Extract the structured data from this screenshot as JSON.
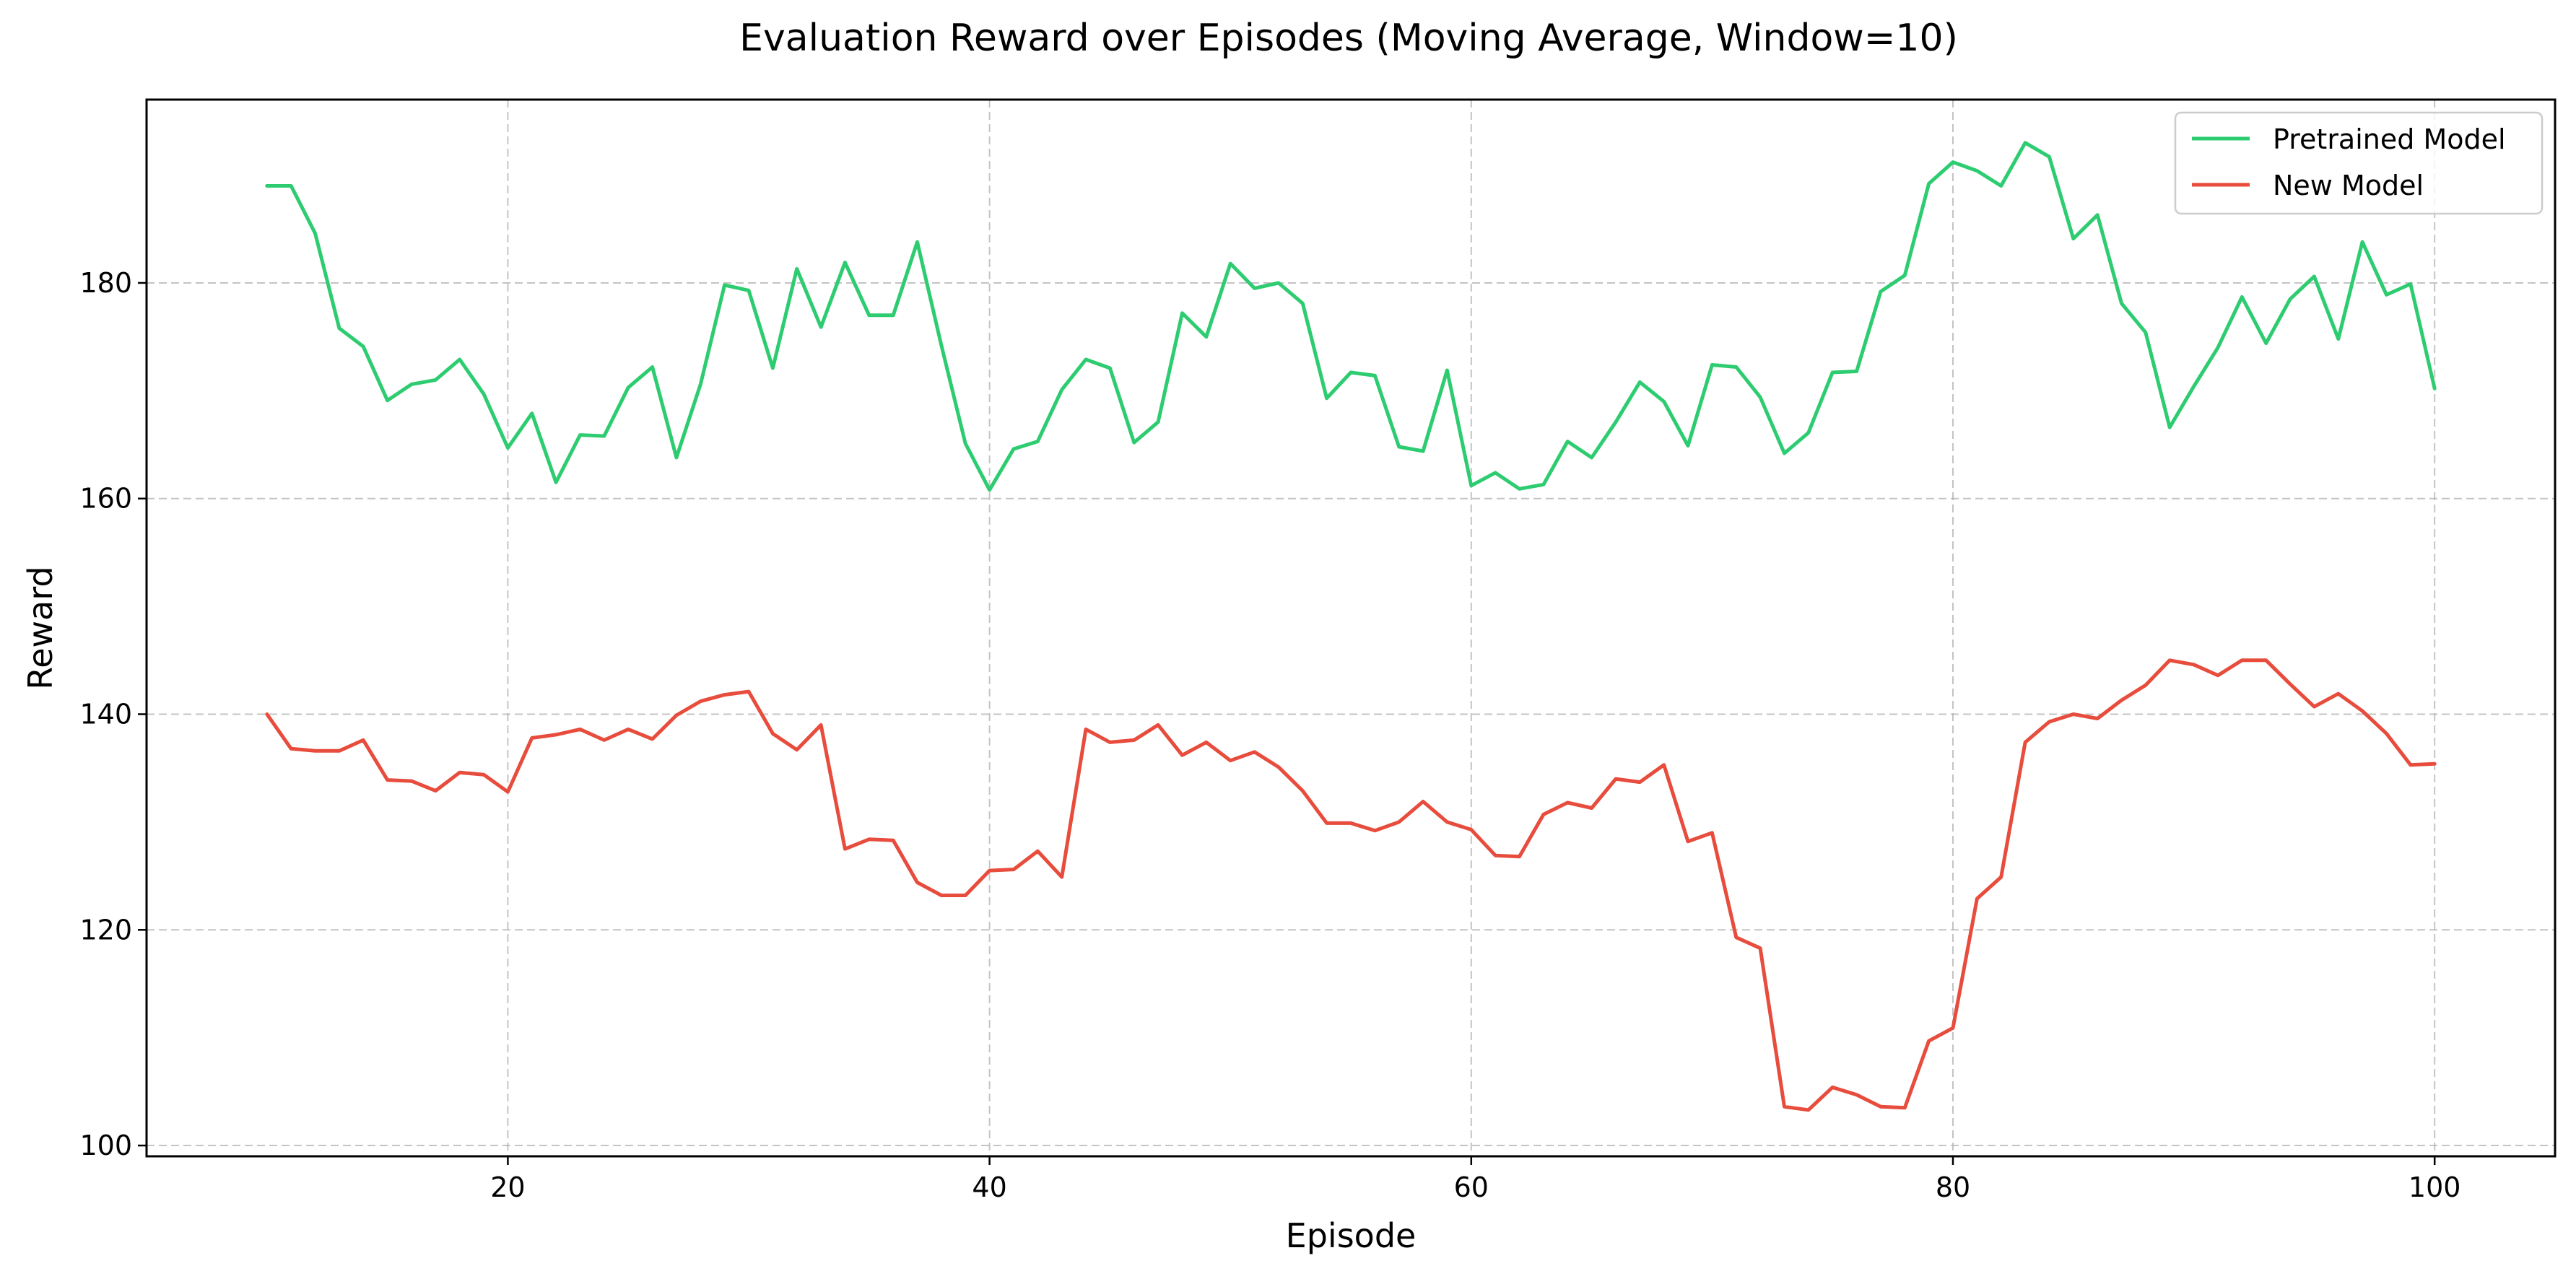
{
  "chart_data": {
    "type": "line",
    "title": "Evaluation Reward over Episodes (Moving Average, Window=10)",
    "xlabel": "Episode",
    "ylabel": "Reward",
    "xlim": [
      5,
      105
    ],
    "ylim": [
      99,
      197
    ],
    "xticks": [
      20,
      40,
      60,
      80,
      100
    ],
    "yticks": [
      100,
      120,
      140,
      160,
      180
    ],
    "grid": true,
    "legend_position": "top-right",
    "x": [
      10,
      11,
      12,
      13,
      14,
      15,
      16,
      17,
      18,
      19,
      20,
      21,
      22,
      23,
      24,
      25,
      26,
      27,
      28,
      29,
      30,
      31,
      32,
      33,
      34,
      35,
      36,
      37,
      38,
      39,
      40,
      41,
      42,
      43,
      44,
      45,
      46,
      47,
      48,
      49,
      50,
      51,
      52,
      53,
      54,
      55,
      56,
      57,
      58,
      59,
      60,
      61,
      62,
      63,
      64,
      65,
      66,
      67,
      68,
      69,
      70,
      71,
      72,
      73,
      74,
      75,
      76,
      77,
      78,
      79,
      80,
      81,
      82,
      83,
      84,
      85,
      86,
      87,
      88,
      89,
      90,
      91,
      92,
      93,
      94,
      95,
      96,
      97,
      98,
      99,
      100
    ],
    "series": [
      {
        "name": "Pretrained Model",
        "color": "#2ecc71",
        "values": [
          189.0,
          189.0,
          184.6,
          175.8,
          174.1,
          169.1,
          170.6,
          171.0,
          172.9,
          169.7,
          164.7,
          167.9,
          161.5,
          165.9,
          165.8,
          170.3,
          172.2,
          163.8,
          170.6,
          179.8,
          179.3,
          172.1,
          181.3,
          175.9,
          181.9,
          177.0,
          177.0,
          183.8,
          174.2,
          165.1,
          160.8,
          164.6,
          165.3,
          170.1,
          172.9,
          172.1,
          165.2,
          167.1,
          177.2,
          175.0,
          181.8,
          179.5,
          180.0,
          178.1,
          169.3,
          171.7,
          171.4,
          164.8,
          164.4,
          171.9,
          161.2,
          162.4,
          160.9,
          161.3,
          165.3,
          163.8,
          167.1,
          170.8,
          169.0,
          164.9,
          172.4,
          172.2,
          169.4,
          164.2,
          166.1,
          171.7,
          171.8,
          179.2,
          180.7,
          189.2,
          191.2,
          190.4,
          189.0,
          193.0,
          191.7,
          184.1,
          186.3,
          178.1,
          175.4,
          166.6,
          170.4,
          174.0,
          178.7,
          174.4,
          178.5,
          180.6,
          174.8,
          183.8,
          178.9,
          179.9,
          170.2
        ]
      },
      {
        "name": "New Model",
        "color": "#e74c3c",
        "values": [
          140.0,
          136.8,
          136.6,
          136.6,
          137.6,
          133.9,
          133.8,
          132.9,
          134.6,
          134.4,
          132.8,
          137.8,
          138.1,
          138.6,
          137.6,
          138.6,
          137.7,
          139.9,
          141.2,
          141.8,
          142.1,
          138.2,
          136.7,
          139.0,
          127.5,
          128.4,
          128.3,
          124.4,
          123.2,
          123.2,
          125.5,
          125.6,
          127.3,
          124.9,
          138.6,
          137.4,
          137.6,
          139.0,
          136.2,
          137.4,
          135.7,
          136.5,
          135.1,
          132.9,
          129.9,
          129.9,
          129.2,
          130.0,
          131.9,
          130.0,
          129.3,
          126.9,
          126.8,
          130.7,
          131.8,
          131.3,
          134.0,
          133.7,
          135.3,
          128.2,
          129.0,
          119.3,
          118.3,
          103.6,
          103.3,
          105.4,
          104.7,
          103.6,
          103.5,
          109.7,
          110.9,
          122.9,
          124.9,
          137.4,
          139.3,
          140.0,
          139.6,
          141.3,
          142.7,
          145.0,
          144.6,
          143.6,
          145.0,
          145.0,
          142.8,
          140.7,
          141.9,
          140.3,
          138.2,
          135.3,
          135.4
        ]
      }
    ]
  }
}
